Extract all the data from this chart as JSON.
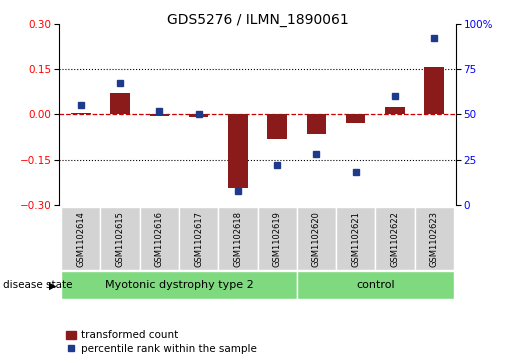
{
  "title": "GDS5276 / ILMN_1890061",
  "samples": [
    "GSM1102614",
    "GSM1102615",
    "GSM1102616",
    "GSM1102617",
    "GSM1102618",
    "GSM1102619",
    "GSM1102620",
    "GSM1102621",
    "GSM1102622",
    "GSM1102623"
  ],
  "bar_values": [
    0.005,
    0.07,
    -0.005,
    -0.01,
    -0.245,
    -0.08,
    -0.065,
    -0.03,
    0.025,
    0.155
  ],
  "dot_values": [
    55,
    67,
    52,
    50,
    8,
    22,
    28,
    18,
    60,
    92
  ],
  "groups": [
    {
      "label": "Myotonic dystrophy type 2",
      "start": 0,
      "end": 6
    },
    {
      "label": "control",
      "start": 6,
      "end": 10
    }
  ],
  "bar_color": "#8B1A1A",
  "dot_color": "#1E3A8A",
  "ylim_left": [
    -0.3,
    0.3
  ],
  "ylim_right": [
    0,
    100
  ],
  "yticks_left": [
    -0.3,
    -0.15,
    0.0,
    0.15,
    0.3
  ],
  "yticks_right": [
    0,
    25,
    50,
    75,
    100
  ],
  "legend_bar_label": "transformed count",
  "legend_dot_label": "percentile rank within the sample",
  "disease_label": "disease state",
  "sample_box_color": "#d3d3d3",
  "group_box_color": "#7FD97F",
  "title_fontsize": 10,
  "tick_fontsize": 7.5,
  "sample_fontsize": 6.0,
  "group_fontsize": 8.0,
  "legend_fontsize": 7.5
}
